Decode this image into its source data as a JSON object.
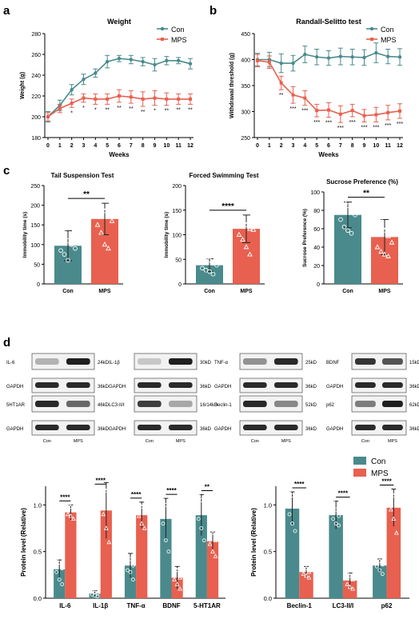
{
  "panels": {
    "a": "a",
    "b": "b",
    "c": "c",
    "d": "d"
  },
  "colors": {
    "con": "#4a8a8c",
    "mps": "#e8604f"
  },
  "legend": {
    "con": "Con",
    "mps": "MPS"
  },
  "blot": {
    "loading_label": "GAPDH",
    "loading_kd": "36kD",
    "lanes": [
      "Con",
      "MPS"
    ],
    "panels": [
      {
        "name": "IL-6",
        "kd": "24kD",
        "con": 0.25,
        "mps": 0.95
      },
      {
        "name": "IL-1β",
        "kd": "30kD",
        "con": 0.15,
        "mps": 0.95
      },
      {
        "name": "TNF-α",
        "kd": "25kD",
        "con": 0.4,
        "mps": 0.9
      },
      {
        "name": "BDNF",
        "kd": "15kD",
        "con": 0.85,
        "mps": 0.7
      },
      {
        "name": "5HT1AR",
        "kd": "46kD",
        "con": 0.9,
        "mps": 0.6
      },
      {
        "name": "LC3-II/I",
        "kd": "16/14kD",
        "con": 0.8,
        "mps": 0.3
      },
      {
        "name": "Beclin-1",
        "kd": "52kD",
        "con": 0.9,
        "mps": 0.45
      },
      {
        "name": "p62",
        "kd": "62kD",
        "con": 0.5,
        "mps": 0.95
      }
    ]
  },
  "chart_data": [
    {
      "type": "line",
      "id": "weight",
      "title": "Weight",
      "xlabel": "Weeks",
      "ylabel": "Weight (g)",
      "x": [
        0,
        1,
        2,
        3,
        4,
        5,
        6,
        7,
        8,
        9,
        10,
        11,
        12
      ],
      "xlim": [
        0,
        12
      ],
      "ylim": [
        180,
        280
      ],
      "yticks": [
        180,
        200,
        220,
        240,
        260,
        280
      ],
      "legend": "top-right",
      "series": [
        {
          "name": "Con",
          "values": [
            200,
            211,
            226,
            236,
            242,
            253,
            256,
            255,
            253,
            250,
            254,
            254,
            251
          ],
          "err": [
            5,
            5,
            5,
            5,
            4,
            6,
            3,
            4,
            4,
            6,
            4,
            3,
            5
          ]
        },
        {
          "name": "MPS",
          "values": [
            200,
            208,
            213,
            218,
            217,
            217,
            220,
            219,
            217,
            218,
            217,
            217,
            217
          ],
          "err": [
            4,
            4,
            4,
            4,
            5,
            5,
            6,
            6,
            7,
            7,
            6,
            5,
            5
          ]
        }
      ],
      "annotations": [
        "",
        "",
        "*",
        "*",
        "*",
        "**",
        "**",
        "**",
        "**",
        "*",
        "**",
        "**",
        "**"
      ]
    },
    {
      "type": "line",
      "id": "randall",
      "title": "Randall-Selitto test",
      "xlabel": "Weeks",
      "ylabel": "Withdrawal threshold (g)",
      "x": [
        0,
        1,
        2,
        3,
        4,
        5,
        6,
        7,
        8,
        9,
        10,
        11,
        12
      ],
      "xlim": [
        0,
        12
      ],
      "ylim": [
        250,
        450
      ],
      "yticks": [
        250,
        300,
        350,
        400,
        450
      ],
      "legend": "top-right",
      "series": [
        {
          "name": "Con",
          "values": [
            400,
            400,
            393,
            393,
            410,
            405,
            403,
            406,
            405,
            404,
            413,
            406,
            405
          ],
          "err": [
            12,
            14,
            18,
            15,
            16,
            15,
            14,
            16,
            15,
            15,
            19,
            14,
            16
          ]
        },
        {
          "name": "MPS",
          "values": [
            398,
            395,
            355,
            332,
            326,
            302,
            303,
            295,
            302,
            292,
            294,
            298,
            301
          ],
          "err": [
            12,
            12,
            13,
            16,
            14,
            12,
            14,
            16,
            12,
            12,
            14,
            14,
            14
          ]
        }
      ],
      "annotations": [
        "",
        "",
        "**",
        "***",
        "***",
        "***",
        "***",
        "***",
        "***",
        "***",
        "***",
        "***",
        "***"
      ]
    },
    {
      "type": "bar",
      "id": "tst",
      "title": "Tail Suspension Test",
      "ylabel": "Immobility time (s)",
      "categories": [
        "Con",
        "MPS"
      ],
      "values": [
        97,
        165
      ],
      "err": [
        38,
        40
      ],
      "ylim": [
        0,
        250
      ],
      "yticks": [
        0,
        50,
        100,
        150,
        200,
        250
      ],
      "sig": "**",
      "points": [
        [
          135,
          130,
          110,
          100,
          90,
          85,
          75,
          60
        ],
        [
          205,
          200,
          185,
          175,
          160,
          150,
          130,
          100,
          90
        ]
      ]
    },
    {
      "type": "bar",
      "id": "fst",
      "title": "Forced Swimming Test",
      "ylabel": "Immobility time (s)",
      "categories": [
        "Con",
        "MPS"
      ],
      "values": [
        38,
        112
      ],
      "err": [
        13,
        28
      ],
      "ylim": [
        0,
        200
      ],
      "yticks": [
        0,
        50,
        100,
        150,
        200
      ],
      "sig": "****",
      "points": [
        [
          60,
          55,
          48,
          42,
          38,
          32,
          28,
          25,
          20
        ],
        [
          150,
          135,
          120,
          112,
          110,
          100,
          90,
          75,
          60
        ]
      ]
    },
    {
      "type": "bar",
      "id": "sp",
      "title": "Sucrose Preference (%)",
      "ylabel": "Sucrose Preference (%)",
      "categories": [
        "Con",
        "MPS"
      ],
      "values": [
        75,
        51
      ],
      "err": [
        14,
        19
      ],
      "ylim": [
        0,
        100
      ],
      "yticks": [
        0,
        20,
        40,
        60,
        80,
        100
      ],
      "sig": "**",
      "points": [
        [
          92,
          88,
          85,
          80,
          75,
          70,
          62,
          58,
          55
        ],
        [
          80,
          70,
          58,
          52,
          45,
          40,
          35,
          32,
          30
        ]
      ]
    },
    {
      "type": "bar",
      "id": "protein1",
      "ylabel": "Protein level (Relative)",
      "categories": [
        "IL-6",
        "IL-1β",
        "TNF-α",
        "BDNF",
        "5-HT1AR"
      ],
      "ylim": [
        0,
        1.2
      ],
      "yticks": [
        0.0,
        0.5,
        1.0
      ],
      "series": [
        {
          "name": "Con",
          "values": [
            0.31,
            0.05,
            0.35,
            0.85,
            0.89
          ],
          "err": [
            0.1,
            0.03,
            0.13,
            0.22,
            0.22
          ],
          "points": [
            [
              0.42,
              0.38,
              0.32,
              0.28,
              0.2,
              0.15
            ],
            [
              0.08,
              0.06,
              0.05,
              0.04,
              0.03,
              0.02
            ],
            [
              0.55,
              0.42,
              0.35,
              0.3,
              0.28,
              0.2
            ],
            [
              1.05,
              1.0,
              0.92,
              0.8,
              0.62,
              0.5
            ],
            [
              1.1,
              1.05,
              0.95,
              0.85,
              0.75,
              0.62
            ]
          ]
        },
        {
          "name": "MPS",
          "values": [
            0.92,
            0.94,
            0.89,
            0.22,
            0.61
          ],
          "err": [
            0.08,
            0.3,
            0.14,
            0.12,
            0.1
          ],
          "points": [
            [
              1.02,
              0.98,
              0.95,
              0.9,
              0.88,
              0.85
            ],
            [
              1.2,
              1.15,
              1.0,
              0.9,
              0.75,
              0.6
            ],
            [
              1.0,
              0.98,
              0.92,
              0.88,
              0.8,
              0.75
            ],
            [
              0.4,
              0.3,
              0.22,
              0.2,
              0.15,
              0.1
            ],
            [
              0.78,
              0.7,
              0.62,
              0.58,
              0.5,
              0.45
            ]
          ]
        }
      ],
      "sig": [
        "****",
        "****",
        "****",
        "****",
        "**"
      ]
    },
    {
      "type": "bar",
      "id": "protein2",
      "ylabel": "Protein level (Relative)",
      "categories": [
        "Beclin-1",
        "LC3-II/I",
        "p62"
      ],
      "ylim": [
        0,
        1.2
      ],
      "yticks": [
        0.0,
        0.5,
        1.0
      ],
      "series": [
        {
          "name": "Con",
          "values": [
            0.96,
            0.89,
            0.35
          ],
          "err": [
            0.18,
            0.15,
            0.07
          ],
          "points": [
            [
              1.15,
              1.1,
              1.0,
              0.9,
              0.8,
              0.72
            ],
            [
              1.05,
              0.95,
              0.88,
              0.85,
              0.8,
              0.78
            ],
            [
              0.45,
              0.4,
              0.36,
              0.34,
              0.3,
              0.26
            ]
          ]
        },
        {
          "name": "MPS",
          "values": [
            0.28,
            0.19,
            0.97
          ],
          "err": [
            0.06,
            0.08,
            0.2
          ],
          "points": [
            [
              0.38,
              0.32,
              0.28,
              0.26,
              0.24,
              0.22
            ],
            [
              0.28,
              0.24,
              0.2,
              0.15,
              0.12,
              0.1
            ],
            [
              1.15,
              1.1,
              1.0,
              0.95,
              0.85,
              0.7
            ]
          ]
        }
      ],
      "sig": [
        "****",
        "****",
        "****"
      ]
    }
  ]
}
